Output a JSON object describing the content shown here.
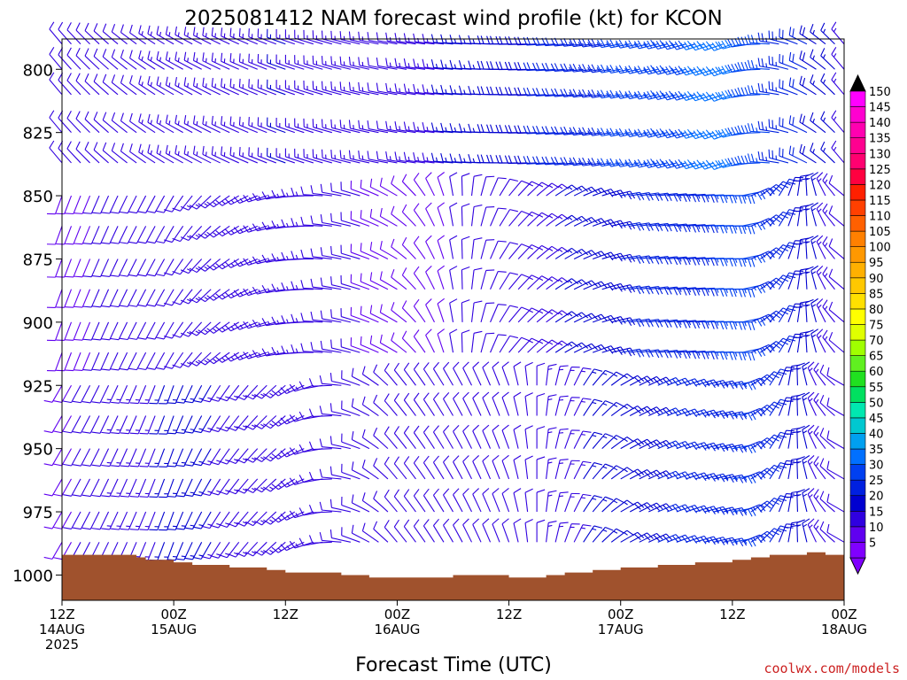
{
  "chart_data": {
    "type": "wind-barb-profile",
    "title": "2025081412 NAM forecast wind profile (kt) for KCON",
    "xlabel": "Forecast Time (UTC)",
    "ylabel": "",
    "credit": "coolwx.com/models",
    "y_axis": {
      "unit": "hPa",
      "range": [
        788,
        1010
      ],
      "ticks": [
        800,
        825,
        850,
        875,
        900,
        925,
        950,
        975,
        1000
      ]
    },
    "x_axis": {
      "range_hours": [
        0,
        84
      ],
      "ticks": [
        {
          "hour": 0,
          "lines": [
            "12Z",
            "14AUG",
            "2025"
          ]
        },
        {
          "hour": 12,
          "lines": [
            "00Z",
            "15AUG"
          ]
        },
        {
          "hour": 24,
          "lines": [
            "12Z"
          ]
        },
        {
          "hour": 36,
          "lines": [
            "00Z",
            "16AUG"
          ]
        },
        {
          "hour": 48,
          "lines": [
            "12Z"
          ]
        },
        {
          "hour": 60,
          "lines": [
            "00Z",
            "17AUG"
          ]
        },
        {
          "hour": 72,
          "lines": [
            "12Z"
          ]
        },
        {
          "hour": 84,
          "lines": [
            "00Z",
            "18AUG"
          ]
        }
      ]
    },
    "colorbar": {
      "levels": [
        5,
        10,
        15,
        20,
        25,
        30,
        35,
        40,
        45,
        50,
        55,
        60,
        65,
        70,
        75,
        80,
        85,
        90,
        95,
        100,
        105,
        110,
        115,
        120,
        125,
        130,
        135,
        140,
        145,
        150
      ],
      "colors": [
        "#8000ff",
        "#6000f0",
        "#3000e0",
        "#0000d0",
        "#0020e0",
        "#0040f0",
        "#0070ff",
        "#00a0f0",
        "#00c8d0",
        "#00e8b0",
        "#00e060",
        "#20e020",
        "#60f020",
        "#a0ff00",
        "#e0ff00",
        "#ffff00",
        "#ffe000",
        "#ffc800",
        "#ffb000",
        "#ff9800",
        "#ff8000",
        "#ff6000",
        "#ff4000",
        "#ff2000",
        "#ff0040",
        "#ff0070",
        "#ff0090",
        "#ff00b0",
        "#ff00d0",
        "#ff00ff"
      ],
      "low_arrow_color": "#8000ff",
      "high_arrow_color": "#000000"
    },
    "terrain": {
      "color": "#a0522d",
      "hours": [
        0,
        4,
        8,
        9,
        12,
        14,
        18,
        22,
        24,
        26,
        30,
        33,
        36,
        40,
        42,
        45,
        48,
        52,
        54,
        57,
        60,
        64,
        68,
        72,
        74,
        76,
        80,
        82,
        84
      ],
      "surface_hpa": [
        992,
        992,
        993,
        994,
        995,
        996,
        997,
        998,
        999,
        999,
        1000,
        1001,
        1001,
        1001,
        1000,
        1000,
        1001,
        1000,
        999,
        998,
        997,
        996,
        995,
        994,
        993,
        992,
        991,
        992,
        993
      ]
    },
    "wind_barbs": {
      "pressure_levels_hpa": [
        790,
        800,
        810,
        825,
        837,
        850,
        862,
        875,
        887,
        900,
        912,
        925,
        937,
        950,
        962,
        975,
        987
      ],
      "time_step_hours": 1,
      "max_hour": 84,
      "speed_kt_by_layer": {
        "upper_790_850": {
          "hours": [
            0,
            12,
            24,
            36,
            48,
            60,
            72,
            84
          ],
          "speed": [
            10,
            13,
            15,
            12,
            18,
            25,
            32,
            14
          ]
        },
        "mid_850_925": {
          "hours": [
            0,
            12,
            24,
            36,
            48,
            60,
            72,
            84
          ],
          "speed": [
            9,
            12,
            14,
            8,
            12,
            20,
            27,
            12
          ]
        },
        "lower_925_990": {
          "hours": [
            0,
            12,
            24,
            36,
            48,
            60,
            72,
            84
          ],
          "speed": [
            9,
            16,
            13,
            11,
            10,
            18,
            25,
            10
          ]
        }
      },
      "direction_deg_by_layer": {
        "upper_790_850": {
          "hours": [
            0,
            12,
            24,
            36,
            48,
            60,
            72,
            84
          ],
          "direction": [
            320,
            300,
            290,
            280,
            270,
            260,
            250,
            320
          ]
        },
        "mid_850_925": {
          "hours": [
            0,
            12,
            24,
            36,
            48,
            60,
            72,
            84
          ],
          "direction": [
            200,
            210,
            260,
            300,
            40,
            80,
            90,
            310
          ]
        },
        "lower_925_990": {
          "hours": [
            0,
            12,
            24,
            36,
            48,
            60,
            72,
            84
          ],
          "direction": [
            210,
            200,
            230,
            320,
            340,
            60,
            80,
            300
          ]
        }
      }
    }
  }
}
